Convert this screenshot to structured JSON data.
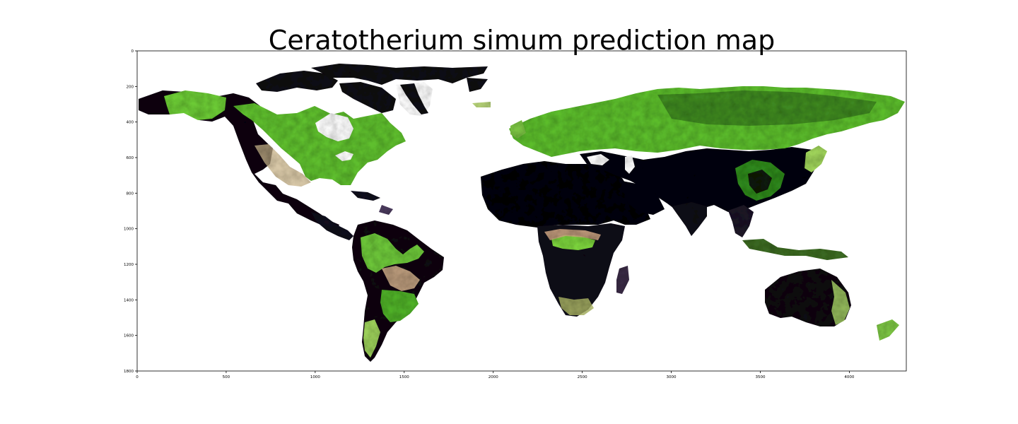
{
  "title": "Ceratotherium simum prediction map",
  "chart_data": {
    "type": "heatmap",
    "title": "Ceratotherium simum prediction map",
    "xlabel": "",
    "ylabel": "",
    "xlim": [
      0,
      4320
    ],
    "ylim": [
      1800,
      0
    ],
    "y_inverted": true,
    "x_ticks": [
      0,
      500,
      1000,
      1500,
      2000,
      2500,
      3000,
      3500,
      4000
    ],
    "y_ticks": [
      0,
      200,
      400,
      600,
      800,
      1000,
      1200,
      1400,
      1600,
      1800
    ],
    "colormap": [
      "#000000",
      "#2b2140",
      "#5e4a6e",
      "#c9a58a",
      "#e8e29a",
      "#8fd14a",
      "#38a800"
    ],
    "background_color": "#ffffff",
    "content": "world map raster colored by predicted habitat suitability; oceans blank (white)",
    "grid": false,
    "colorbar": false
  }
}
